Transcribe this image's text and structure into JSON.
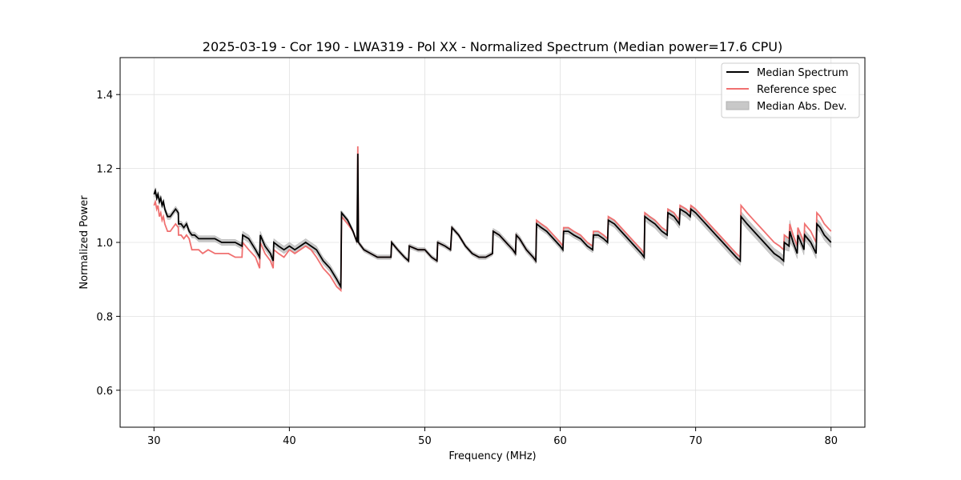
{
  "chart_data": {
    "type": "line",
    "title": "2025-03-19 - Cor 190 - LWA319 - Pol XX - Normalized Spectrum (Median power=17.6 CPU)",
    "xlabel": "Frequency (MHz)",
    "ylabel": "Normalized Power",
    "xlim": [
      27.5,
      82.5
    ],
    "ylim": [
      0.5,
      1.5
    ],
    "xticks": [
      30,
      40,
      50,
      60,
      70,
      80
    ],
    "yticks": [
      0.6,
      0.8,
      1.0,
      1.2,
      1.4
    ],
    "xtick_labels": [
      "30",
      "40",
      "50",
      "60",
      "70",
      "80"
    ],
    "ytick_labels": [
      "0.6",
      "0.8",
      "1.0",
      "1.2",
      "1.4"
    ],
    "grid": true,
    "legend_position": "top-right",
    "legend": [
      "Median Spectrum",
      "Reference spec",
      "Median Abs. Dev."
    ],
    "colors": {
      "median": "#000000",
      "reference": "#f07070",
      "mad": "#b0b0b0",
      "grid": "#e0e0e0"
    },
    "series": [
      {
        "name": "Median Spectrum",
        "x": [
          30.0,
          30.1,
          30.2,
          30.3,
          30.4,
          30.5,
          30.6,
          30.7,
          30.8,
          30.9,
          31.0,
          31.2,
          31.4,
          31.6,
          31.8,
          31.81,
          32.0,
          32.2,
          32.4,
          32.6,
          32.8,
          33.0,
          33.3,
          33.6,
          34.0,
          34.5,
          35.0,
          35.5,
          36.0,
          36.5,
          36.55,
          37.0,
          37.5,
          37.8,
          37.85,
          38.2,
          38.6,
          38.8,
          38.85,
          39.2,
          39.6,
          40.0,
          40.4,
          40.8,
          41.2,
          41.6,
          42.0,
          42.5,
          43.0,
          43.5,
          43.8,
          43.85,
          44.3,
          44.7,
          45.0,
          45.05,
          45.1,
          45.5,
          46.0,
          46.5,
          47.0,
          47.5,
          47.55,
          48.0,
          48.5,
          48.8,
          48.85,
          49.5,
          50.0,
          50.5,
          50.9,
          50.95,
          51.5,
          51.9,
          52.0,
          52.5,
          53.0,
          53.5,
          54.0,
          54.5,
          55.0,
          55.05,
          55.5,
          56.0,
          56.5,
          56.7,
          56.75,
          57.0,
          57.5,
          58.0,
          58.2,
          58.25,
          58.6,
          59.0,
          59.5,
          60.0,
          60.2,
          60.25,
          60.6,
          61.0,
          61.5,
          62.0,
          62.4,
          62.45,
          62.8,
          63.2,
          63.5,
          63.55,
          64.0,
          64.5,
          65.0,
          65.5,
          66.0,
          66.2,
          66.25,
          66.6,
          67.0,
          67.5,
          67.9,
          67.95,
          68.4,
          68.8,
          68.85,
          69.3,
          69.6,
          69.65,
          70.0,
          70.5,
          71.0,
          71.5,
          72.0,
          72.5,
          73.0,
          73.3,
          73.35,
          73.8,
          74.3,
          74.8,
          75.3,
          75.8,
          76.2,
          76.5,
          76.55,
          76.9,
          76.95,
          77.2,
          77.5,
          77.55,
          77.9,
          78.0,
          78.05,
          78.5,
          78.9,
          78.95,
          79.2,
          79.5,
          80.0
        ],
        "values": [
          1.13,
          1.14,
          1.12,
          1.13,
          1.11,
          1.12,
          1.1,
          1.11,
          1.09,
          1.08,
          1.07,
          1.07,
          1.08,
          1.09,
          1.08,
          1.05,
          1.05,
          1.04,
          1.05,
          1.03,
          1.02,
          1.02,
          1.01,
          1.01,
          1.01,
          1.01,
          1.0,
          1.0,
          1.0,
          0.99,
          1.02,
          1.01,
          0.98,
          0.96,
          1.02,
          0.99,
          0.97,
          0.95,
          1.0,
          0.99,
          0.98,
          0.99,
          0.98,
          0.99,
          1.0,
          0.99,
          0.98,
          0.95,
          0.93,
          0.9,
          0.88,
          1.08,
          1.06,
          1.03,
          1.0,
          1.24,
          1.0,
          0.98,
          0.97,
          0.96,
          0.96,
          0.96,
          1.0,
          0.98,
          0.96,
          0.95,
          0.99,
          0.98,
          0.98,
          0.96,
          0.95,
          1.0,
          0.99,
          0.98,
          1.04,
          1.02,
          0.99,
          0.97,
          0.96,
          0.96,
          0.97,
          1.03,
          1.02,
          1.0,
          0.98,
          0.97,
          1.02,
          1.01,
          0.98,
          0.96,
          0.95,
          1.05,
          1.04,
          1.03,
          1.01,
          0.99,
          0.98,
          1.03,
          1.03,
          1.02,
          1.01,
          0.99,
          0.98,
          1.02,
          1.02,
          1.01,
          1.0,
          1.06,
          1.05,
          1.03,
          1.01,
          0.99,
          0.97,
          0.96,
          1.07,
          1.06,
          1.05,
          1.03,
          1.02,
          1.08,
          1.07,
          1.05,
          1.09,
          1.08,
          1.07,
          1.09,
          1.08,
          1.06,
          1.04,
          1.02,
          1.0,
          0.98,
          0.96,
          0.95,
          1.07,
          1.05,
          1.03,
          1.01,
          0.99,
          0.97,
          0.96,
          0.95,
          1.0,
          0.99,
          1.03,
          1.0,
          0.97,
          1.02,
          0.99,
          0.98,
          1.02,
          1.0,
          0.97,
          1.05,
          1.04,
          1.02,
          1.0
        ]
      },
      {
        "name": "Reference spec",
        "x": [
          30.0,
          30.1,
          30.2,
          30.3,
          30.4,
          30.5,
          30.6,
          30.7,
          30.8,
          30.9,
          31.0,
          31.2,
          31.4,
          31.6,
          31.8,
          31.81,
          32.0,
          32.2,
          32.4,
          32.6,
          32.8,
          33.0,
          33.3,
          33.6,
          34.0,
          34.5,
          35.0,
          35.5,
          36.0,
          36.5,
          36.55,
          37.0,
          37.5,
          37.8,
          37.85,
          38.2,
          38.6,
          38.8,
          38.85,
          39.2,
          39.6,
          40.0,
          40.4,
          40.8,
          41.2,
          41.6,
          42.0,
          42.5,
          43.0,
          43.5,
          43.8,
          43.85,
          44.3,
          44.7,
          45.0,
          45.05,
          45.1,
          45.5,
          46.0,
          46.5,
          47.0,
          47.5,
          47.55,
          48.0,
          48.5,
          48.8,
          48.85,
          49.5,
          50.0,
          50.5,
          50.9,
          50.95,
          51.5,
          51.9,
          52.0,
          52.5,
          53.0,
          53.5,
          54.0,
          54.5,
          55.0,
          55.05,
          55.5,
          56.0,
          56.5,
          56.7,
          56.75,
          57.0,
          57.5,
          58.0,
          58.2,
          58.25,
          58.6,
          59.0,
          59.5,
          60.0,
          60.2,
          60.25,
          60.6,
          61.0,
          61.5,
          62.0,
          62.4,
          62.45,
          62.8,
          63.2,
          63.5,
          63.55,
          64.0,
          64.5,
          65.0,
          65.5,
          66.0,
          66.2,
          66.25,
          66.6,
          67.0,
          67.5,
          67.9,
          67.95,
          68.4,
          68.8,
          68.85,
          69.3,
          69.6,
          69.65,
          70.0,
          70.5,
          71.0,
          71.5,
          72.0,
          72.5,
          73.0,
          73.3,
          73.35,
          73.8,
          74.3,
          74.8,
          75.3,
          75.8,
          76.2,
          76.5,
          76.55,
          76.9,
          76.95,
          77.2,
          77.5,
          77.55,
          77.9,
          78.0,
          78.05,
          78.5,
          78.9,
          78.95,
          79.2,
          79.5,
          80.0
        ],
        "values": [
          1.1,
          1.11,
          1.09,
          1.1,
          1.07,
          1.08,
          1.06,
          1.07,
          1.05,
          1.04,
          1.03,
          1.03,
          1.04,
          1.05,
          1.04,
          1.02,
          1.02,
          1.01,
          1.02,
          1.01,
          0.98,
          0.98,
          0.98,
          0.97,
          0.98,
          0.97,
          0.97,
          0.97,
          0.96,
          0.96,
          1.0,
          0.98,
          0.96,
          0.93,
          1.0,
          0.97,
          0.95,
          0.93,
          0.98,
          0.97,
          0.96,
          0.98,
          0.97,
          0.98,
          0.99,
          0.98,
          0.96,
          0.93,
          0.91,
          0.88,
          0.87,
          1.07,
          1.05,
          1.03,
          1.0,
          1.26,
          1.0,
          0.98,
          0.97,
          0.96,
          0.96,
          0.96,
          1.0,
          0.98,
          0.96,
          0.95,
          0.99,
          0.98,
          0.98,
          0.96,
          0.95,
          1.0,
          0.99,
          0.98,
          1.04,
          1.02,
          0.99,
          0.97,
          0.96,
          0.96,
          0.97,
          1.03,
          1.02,
          1.0,
          0.98,
          0.97,
          1.02,
          1.01,
          0.98,
          0.96,
          0.95,
          1.06,
          1.05,
          1.04,
          1.02,
          1.0,
          0.99,
          1.04,
          1.04,
          1.03,
          1.02,
          1.0,
          0.99,
          1.03,
          1.03,
          1.02,
          1.01,
          1.07,
          1.06,
          1.04,
          1.02,
          1.0,
          0.98,
          0.97,
          1.08,
          1.07,
          1.06,
          1.04,
          1.03,
          1.09,
          1.08,
          1.06,
          1.1,
          1.09,
          1.08,
          1.1,
          1.09,
          1.07,
          1.05,
          1.03,
          1.01,
          0.99,
          0.97,
          0.96,
          1.1,
          1.08,
          1.06,
          1.04,
          1.02,
          1.0,
          0.99,
          0.98,
          1.02,
          1.01,
          1.05,
          1.02,
          0.99,
          1.04,
          1.01,
          1.0,
          1.05,
          1.03,
          1.0,
          1.08,
          1.07,
          1.05,
          1.03
        ]
      }
    ],
    "mad_half_width": [
      0.008,
      0.008,
      0.008,
      0.008,
      0.008,
      0.008,
      0.008,
      0.008,
      0.008,
      0.008,
      0.008,
      0.008,
      0.008,
      0.008,
      0.008,
      0.008,
      0.008,
      0.008,
      0.008,
      0.008,
      0.008,
      0.008,
      0.008,
      0.008,
      0.008,
      0.008,
      0.008,
      0.008,
      0.008,
      0.008,
      0.01,
      0.01,
      0.01,
      0.01,
      0.01,
      0.01,
      0.01,
      0.01,
      0.01,
      0.01,
      0.01,
      0.01,
      0.01,
      0.01,
      0.01,
      0.01,
      0.01,
      0.01,
      0.01,
      0.01,
      0.01,
      0.006,
      0.006,
      0.006,
      0.006,
      0.006,
      0.006,
      0.006,
      0.006,
      0.006,
      0.006,
      0.006,
      0.006,
      0.006,
      0.006,
      0.006,
      0.006,
      0.006,
      0.006,
      0.006,
      0.006,
      0.006,
      0.006,
      0.006,
      0.006,
      0.006,
      0.006,
      0.006,
      0.006,
      0.006,
      0.006,
      0.008,
      0.008,
      0.008,
      0.008,
      0.008,
      0.008,
      0.008,
      0.008,
      0.008,
      0.008,
      0.008,
      0.008,
      0.008,
      0.008,
      0.008,
      0.008,
      0.008,
      0.008,
      0.008,
      0.008,
      0.008,
      0.008,
      0.008,
      0.008,
      0.008,
      0.008,
      0.01,
      0.01,
      0.01,
      0.01,
      0.01,
      0.01,
      0.01,
      0.012,
      0.012,
      0.012,
      0.012,
      0.012,
      0.012,
      0.012,
      0.012,
      0.012,
      0.012,
      0.012,
      0.012,
      0.012,
      0.012,
      0.012,
      0.012,
      0.012,
      0.012,
      0.012,
      0.012,
      0.014,
      0.014,
      0.014,
      0.014,
      0.014,
      0.014,
      0.014,
      0.014,
      0.02,
      0.014,
      0.03,
      0.014,
      0.014,
      0.014,
      0.014,
      0.014,
      0.014,
      0.014,
      0.014,
      0.014,
      0.014,
      0.014,
      0.014
    ]
  }
}
